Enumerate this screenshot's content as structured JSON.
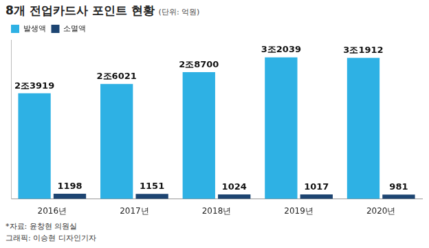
{
  "chart_data": {
    "type": "bar",
    "title": "8개 전업카드사 포인트 현황",
    "subtitle": "(단위: 억원)",
    "categories": [
      "2016년",
      "2017년",
      "2018년",
      "2019년",
      "2020년"
    ],
    "series": [
      {
        "name": "발생액",
        "color": "#2eb1e4",
        "values": [
          23919,
          26021,
          28700,
          32039,
          31912
        ],
        "value_labels": [
          "2조3919",
          "2조6021",
          "2조8700",
          "3조2039",
          "3조1912"
        ]
      },
      {
        "name": "소멸액",
        "color": "#1d4572",
        "values": [
          1198,
          1151,
          1024,
          1017,
          981
        ]
      }
    ],
    "ylim": [
      0,
      36000
    ],
    "grid": false,
    "legend": "top-left",
    "data_labels": true,
    "tick_labels": "x",
    "annotations": [
      "*자료: 윤창현 의원실",
      "그래픽: 이승현 디자인기자"
    ]
  }
}
